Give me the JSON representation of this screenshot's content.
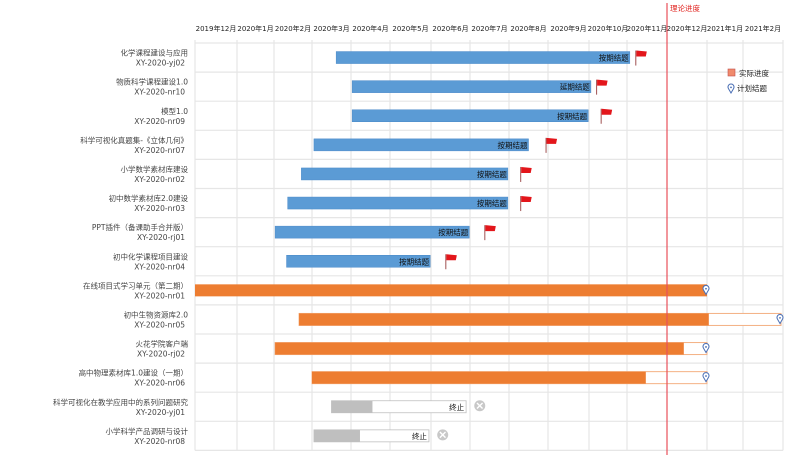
{
  "chart_data": {
    "type": "gantt",
    "title": "",
    "x_axis": {
      "tick_labels": [
        "2019年12月",
        "2020年1月",
        "2020年2月",
        "2020年3月",
        "2020年4月",
        "2020年5月",
        "2020年6月",
        "2020年7月",
        "2020年8月",
        "2020年9月",
        "2020年10月",
        "2020年11月",
        "2020年12月",
        "2021年1月",
        "2021年2月"
      ],
      "range_months": [
        0,
        15
      ],
      "grid": true
    },
    "reference_line": {
      "label": "理论进度",
      "at_month": 12.0,
      "color": "#e8505b"
    },
    "legend": {
      "position": "right",
      "items": [
        {
          "label": "实际进度",
          "symbol": "square",
          "color": "#f08a6c"
        },
        {
          "label": "计划结题",
          "symbol": "pin",
          "color": "#4a6fb5"
        }
      ]
    },
    "colors": {
      "done": "#5b9bd5",
      "active": "#ed7d31",
      "stopped": "#bfbfbf",
      "flag": "#e3161b",
      "grid": "#d9d9d9"
    },
    "rows": [
      {
        "name": "化学课程建设与应用",
        "code": "XY-2020-yj02",
        "status": "done",
        "start": 3.62,
        "end": 11.07,
        "label": "按期结题",
        "marker": "flag",
        "marker_at": 11.22
      },
      {
        "name": "物质科学课程建设1.0",
        "code": "XY-2020-nr10",
        "status": "done",
        "start": 4.03,
        "end": 10.05,
        "label": "延期结题",
        "marker": "flag",
        "marker_at": 10.2
      },
      {
        "name": "模型1.0",
        "code": "XY-2020-nr09",
        "status": "done",
        "start": 4.03,
        "end": 9.98,
        "label": "按期结题",
        "marker": "flag",
        "marker_at": 10.32
      },
      {
        "name": "科学可视化真题集-《立体几何》",
        "code": "XY-2020-nr07",
        "status": "done",
        "start": 3.05,
        "end": 8.5,
        "label": "按期结题",
        "marker": "flag",
        "marker_at": 8.95
      },
      {
        "name": "小学数学素材库建设",
        "code": "XY-2020-nr02",
        "status": "done",
        "start": 2.72,
        "end": 7.97,
        "label": "按期结题",
        "marker": "flag",
        "marker_at": 8.3
      },
      {
        "name": "初中数学素材库2.0建设",
        "code": "XY-2020-nr03",
        "status": "done",
        "start": 2.36,
        "end": 7.97,
        "label": "按期结题",
        "marker": "flag",
        "marker_at": 8.3
      },
      {
        "name": "PPT插件（备课助手合并版）",
        "code": "XY-2020-rj01",
        "status": "done",
        "start": 2.03,
        "end": 6.98,
        "label": "按期结题",
        "marker": "flag",
        "marker_at": 7.38
      },
      {
        "name": "初中化学课程项目建设",
        "code": "XY-2020-nr04",
        "status": "done",
        "start": 2.33,
        "end": 5.98,
        "label": "按期结题",
        "marker": "flag",
        "marker_at": 6.38
      },
      {
        "name": "在线项目式学习单元（第二期）",
        "code": "XY-2020-nr01",
        "status": "active",
        "start": 0.0,
        "actual_end": 13.0,
        "planned_end": 13.0,
        "marker": "pin"
      },
      {
        "name": "初中生物资源库2.0",
        "code": "XY-2020-nr05",
        "status": "active",
        "start": 2.66,
        "actual_end": 13.05,
        "planned_end": 14.95,
        "marker": "pin"
      },
      {
        "name": "火花学院客户端",
        "code": "XY-2020-rj02",
        "status": "active",
        "start": 2.03,
        "actual_end": 12.42,
        "planned_end": 13.0,
        "marker": "pin"
      },
      {
        "name": "高中物理素材库1.0建设（一期）",
        "code": "XY-2020-nr06",
        "status": "active",
        "start": 3.0,
        "actual_end": 11.47,
        "planned_end": 13.0,
        "marker": "pin"
      },
      {
        "name": "科学可视化在教学应用中的系列问题研究",
        "code": "XY-2020-yj01",
        "status": "stopped",
        "start": 3.5,
        "actual_end": 4.55,
        "planned_end": 6.9,
        "label": "终止",
        "marker": "cross",
        "marker_at": 7.25
      },
      {
        "name": "小学科学产品调研与设计",
        "code": "XY-2020-nr08",
        "status": "stopped",
        "start": 3.05,
        "actual_end": 4.23,
        "planned_end": 5.95,
        "label": "终止",
        "marker": "cross",
        "marker_at": 6.3
      }
    ]
  }
}
